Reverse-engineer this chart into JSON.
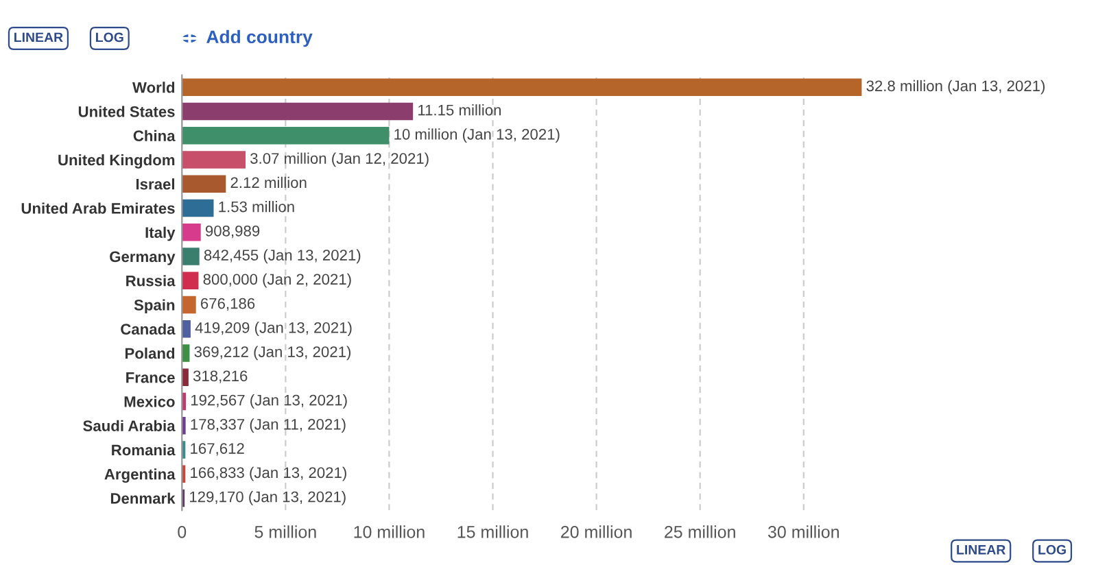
{
  "chart_data": {
    "type": "bar",
    "orientation": "horizontal",
    "categories": [
      "World",
      "United States",
      "China",
      "United Kingdom",
      "Israel",
      "United Arab Emirates",
      "Italy",
      "Germany",
      "Russia",
      "Spain",
      "Canada",
      "Poland",
      "France",
      "Mexico",
      "Saudi Arabia",
      "Romania",
      "Argentina",
      "Denmark"
    ],
    "values": [
      32800000,
      11150000,
      10000000,
      3070000,
      2120000,
      1530000,
      908989,
      842455,
      800000,
      676186,
      419209,
      369212,
      318216,
      192567,
      178337,
      167612,
      166833,
      129170
    ],
    "value_labels": [
      "32.8 million (Jan 13, 2021)",
      "11.15 million",
      "10 million (Jan 13, 2021)",
      "3.07 million (Jan 12, 2021)",
      "2.12 million",
      "1.53 million",
      "908,989",
      "842,455 (Jan 13, 2021)",
      "800,000 (Jan 2, 2021)",
      "676,186",
      "419,209 (Jan 13, 2021)",
      "369,212 (Jan 13, 2021)",
      "318,216",
      "192,567 (Jan 13, 2021)",
      "178,337 (Jan 11, 2021)",
      "167,612",
      "166,833 (Jan 13, 2021)",
      "129,170 (Jan 13, 2021)"
    ],
    "colors": [
      "#b5652a",
      "#8b3d6e",
      "#3f8f6b",
      "#c84f6a",
      "#a85a2e",
      "#2e6e96",
      "#d63b8c",
      "#3a7f6e",
      "#d12d4f",
      "#c5662f",
      "#4f5f9f",
      "#3d8f45",
      "#8a2b3c",
      "#c03a6f",
      "#6a3d8f",
      "#3a8f8a",
      "#c04a3a",
      "#5a3d5f"
    ],
    "xlim": [
      0,
      33000000
    ],
    "xticks": [
      0,
      {
        "value": 5000000,
        "label": "5 million"
      },
      {
        "value": 10000000,
        "label": "10 million"
      },
      {
        "value": 15000000,
        "label": "15 million"
      },
      {
        "value": 20000000,
        "label": "20 million"
      },
      {
        "value": 25000000,
        "label": "25 million"
      },
      {
        "value": 30000000,
        "label": "30 million"
      }
    ],
    "grid": "x",
    "annotations": [
      "LINEAR",
      "LOG",
      "Add country",
      "LINEAR",
      "LOG"
    ]
  }
}
